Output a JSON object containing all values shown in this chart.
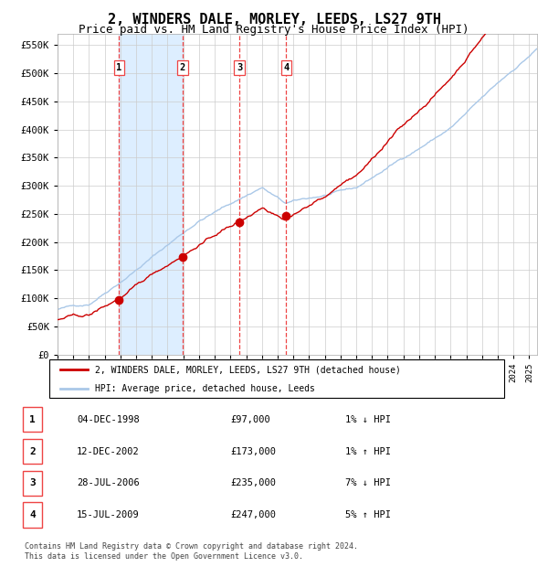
{
  "title": "2, WINDERS DALE, MORLEY, LEEDS, LS27 9TH",
  "subtitle": "Price paid vs. HM Land Registry's House Price Index (HPI)",
  "title_fontsize": 11,
  "subtitle_fontsize": 9,
  "ylim": [
    0,
    570000
  ],
  "yticks": [
    0,
    50000,
    100000,
    150000,
    200000,
    250000,
    300000,
    350000,
    400000,
    450000,
    500000,
    550000
  ],
  "ytick_labels": [
    "£0",
    "£50K",
    "£100K",
    "£150K",
    "£200K",
    "£250K",
    "£300K",
    "£350K",
    "£400K",
    "£450K",
    "£500K",
    "£550K"
  ],
  "background_color": "#ffffff",
  "plot_bg_color": "#ffffff",
  "grid_color": "#cccccc",
  "hpi_line_color": "#aac8e8",
  "price_line_color": "#cc0000",
  "sale_marker_color": "#cc0000",
  "vline_color": "#ee4444",
  "shade_color": "#ddeeff",
  "xmin": 1995.0,
  "xmax": 2025.5,
  "transactions": [
    {
      "label": "1",
      "date_num": 1998.92,
      "price": 97000,
      "date_str": "04-DEC-1998",
      "hpi_note": "1% ↓ HPI"
    },
    {
      "label": "2",
      "date_num": 2002.95,
      "price": 173000,
      "date_str": "12-DEC-2002",
      "hpi_note": "1% ↑ HPI"
    },
    {
      "label": "3",
      "date_num": 2006.57,
      "price": 235000,
      "date_str": "28-JUL-2006",
      "hpi_note": "7% ↓ HPI"
    },
    {
      "label": "4",
      "date_num": 2009.54,
      "price": 247000,
      "date_str": "15-JUL-2009",
      "hpi_note": "5% ↑ HPI"
    }
  ],
  "legend_entries": [
    "2, WINDERS DALE, MORLEY, LEEDS, LS27 9TH (detached house)",
    "HPI: Average price, detached house, Leeds"
  ],
  "footer": "Contains HM Land Registry data © Crown copyright and database right 2024.\nThis data is licensed under the Open Government Licence v3.0.",
  "table_rows": [
    [
      "1",
      "04-DEC-1998",
      "£97,000",
      "1% ↓ HPI"
    ],
    [
      "2",
      "12-DEC-2002",
      "£173,000",
      "1% ↑ HPI"
    ],
    [
      "3",
      "28-JUL-2006",
      "£235,000",
      "7% ↓ HPI"
    ],
    [
      "4",
      "15-JUL-2009",
      "£247,000",
      "5% ↑ HPI"
    ]
  ]
}
